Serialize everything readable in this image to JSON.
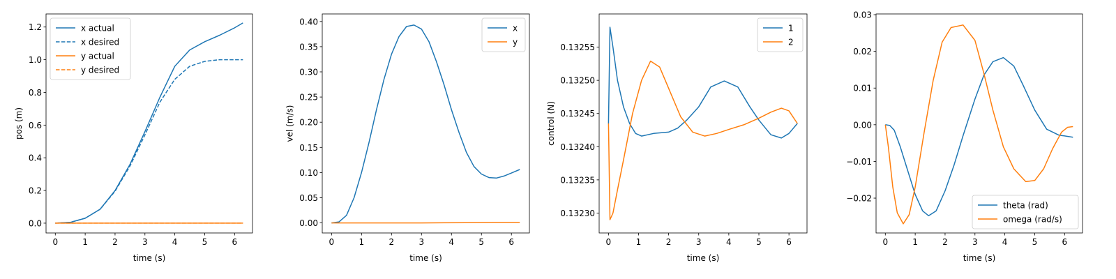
{
  "chart_data": [
    {
      "type": "line",
      "xlabel": "time (s)",
      "ylabel": "pos (m)",
      "xlim": [
        -0.31,
        6.6
      ],
      "ylim": [
        -0.06,
        1.28
      ],
      "xticks": [
        0,
        1,
        2,
        3,
        4,
        5,
        6
      ],
      "xtick_labels": [
        "0",
        "1",
        "2",
        "3",
        "4",
        "5",
        "6"
      ],
      "yticks": [
        0.0,
        0.2,
        0.4,
        0.6,
        0.8,
        1.0,
        1.2
      ],
      "ytick_labels": [
        "0.0",
        "0.2",
        "0.4",
        "0.6",
        "0.8",
        "1.0",
        "1.2"
      ],
      "legend_position": "upper-left",
      "grid": false,
      "series": [
        {
          "name": "x actual",
          "color": "#1f77b4",
          "dash": "solid",
          "x": [
            0,
            0.5,
            1,
            1.5,
            2,
            2.5,
            3,
            3.5,
            4,
            4.5,
            5,
            5.5,
            6,
            6.28
          ],
          "y": [
            0,
            0.005,
            0.03,
            0.085,
            0.2,
            0.36,
            0.56,
            0.77,
            0.96,
            1.06,
            1.11,
            1.15,
            1.195,
            1.225
          ]
        },
        {
          "name": "x desired",
          "color": "#1f77b4",
          "dash": "dashed",
          "x": [
            0,
            0.5,
            1,
            1.5,
            2,
            2.5,
            3,
            3.5,
            4,
            4.5,
            5,
            5.5,
            6,
            6.28
          ],
          "y": [
            0,
            0.005,
            0.03,
            0.085,
            0.195,
            0.35,
            0.54,
            0.74,
            0.88,
            0.96,
            0.99,
            1.0,
            1.0,
            1.0
          ]
        },
        {
          "name": "y actual",
          "color": "#ff7f0e",
          "dash": "solid",
          "x": [
            0,
            6.28
          ],
          "y": [
            0,
            0
          ]
        },
        {
          "name": "y desired",
          "color": "#ff7f0e",
          "dash": "dashed",
          "x": [
            0,
            6.28
          ],
          "y": [
            0,
            0
          ]
        }
      ]
    },
    {
      "type": "line",
      "xlabel": "time (s)",
      "ylabel": "vel (m/s)",
      "xlim": [
        -0.31,
        6.6
      ],
      "ylim": [
        -0.02,
        0.415
      ],
      "xticks": [
        0,
        1,
        2,
        3,
        4,
        5,
        6
      ],
      "xtick_labels": [
        "0",
        "1",
        "2",
        "3",
        "4",
        "5",
        "6"
      ],
      "yticks": [
        0.0,
        0.05,
        0.1,
        0.15,
        0.2,
        0.25,
        0.3,
        0.35,
        0.4
      ],
      "ytick_labels": [
        "0.00",
        "0.05",
        "0.10",
        "0.15",
        "0.20",
        "0.25",
        "0.30",
        "0.35",
        "0.40"
      ],
      "legend_position": "upper-right",
      "grid": false,
      "series": [
        {
          "name": "x",
          "color": "#1f77b4",
          "dash": "solid",
          "x": [
            0,
            0.25,
            0.5,
            0.75,
            1,
            1.25,
            1.5,
            1.75,
            2,
            2.25,
            2.5,
            2.75,
            3,
            3.25,
            3.5,
            3.75,
            4,
            4.25,
            4.5,
            4.75,
            5,
            5.25,
            5.5,
            5.75,
            6,
            6.28
          ],
          "y": [
            0,
            0.002,
            0.015,
            0.05,
            0.1,
            0.16,
            0.225,
            0.285,
            0.335,
            0.37,
            0.39,
            0.393,
            0.385,
            0.36,
            0.32,
            0.275,
            0.225,
            0.18,
            0.14,
            0.112,
            0.097,
            0.09,
            0.089,
            0.093,
            0.099,
            0.106
          ]
        },
        {
          "name": "y",
          "color": "#ff7f0e",
          "dash": "solid",
          "x": [
            0,
            3,
            4.5,
            5.5,
            6.28
          ],
          "y": [
            0,
            0,
            0.0005,
            0.001,
            0.001
          ]
        }
      ]
    },
    {
      "type": "line",
      "xlabel": "time (s)",
      "ylabel": "control (N)",
      "xlim": [
        -0.31,
        6.6
      ],
      "ylim": [
        0.13227,
        0.1326
      ],
      "xticks": [
        0,
        1,
        2,
        3,
        4,
        5,
        6
      ],
      "xtick_labels": [
        "0",
        "1",
        "2",
        "3",
        "4",
        "5",
        "6"
      ],
      "yticks": [
        0.1323,
        0.13235,
        0.1324,
        0.13245,
        0.1325,
        0.13255
      ],
      "ytick_labels": [
        "0.13230",
        "0.13235",
        "0.13240",
        "0.13245",
        "0.13250",
        "0.13255"
      ],
      "legend_position": "upper-right",
      "grid": false,
      "series": [
        {
          "name": "1",
          "color": "#1f77b4",
          "dash": "solid",
          "x": [
            0,
            0.05,
            0.15,
            0.3,
            0.5,
            0.7,
            0.9,
            1.1,
            1.5,
            2.0,
            2.3,
            2.6,
            3.0,
            3.4,
            3.85,
            4.3,
            4.7,
            5.0,
            5.4,
            5.75,
            6.0,
            6.28
          ],
          "y": [
            0.132435,
            0.13258,
            0.13255,
            0.1325,
            0.13246,
            0.132435,
            0.13242,
            0.132416,
            0.13242,
            0.132422,
            0.132428,
            0.13244,
            0.13246,
            0.13249,
            0.132499,
            0.13249,
            0.13246,
            0.13244,
            0.132418,
            0.132413,
            0.13242,
            0.132435
          ]
        },
        {
          "name": "2",
          "color": "#ff7f0e",
          "dash": "solid",
          "x": [
            0,
            0.05,
            0.15,
            0.3,
            0.5,
            0.8,
            1.1,
            1.4,
            1.7,
            2.0,
            2.4,
            2.8,
            3.2,
            3.6,
            4.0,
            4.5,
            5.0,
            5.4,
            5.75,
            6.0,
            6.28
          ],
          "y": [
            0.132435,
            0.13229,
            0.1323,
            0.132335,
            0.13238,
            0.13245,
            0.1325,
            0.132529,
            0.13252,
            0.132488,
            0.132445,
            0.132422,
            0.132416,
            0.13242,
            0.132426,
            0.132433,
            0.132443,
            0.132452,
            0.132458,
            0.132454,
            0.132435
          ]
        }
      ]
    },
    {
      "type": "line",
      "xlabel": "time (s)",
      "ylabel": "",
      "xlim": [
        -0.31,
        6.6
      ],
      "ylim": [
        -0.0295,
        0.0302
      ],
      "xticks": [
        0,
        1,
        2,
        3,
        4,
        5,
        6
      ],
      "xtick_labels": [
        "0",
        "1",
        "2",
        "3",
        "4",
        "5",
        "6"
      ],
      "yticks": [
        -0.02,
        -0.01,
        0.0,
        0.01,
        0.02,
        0.03
      ],
      "ytick_labels": [
        "−0.02",
        "−0.01",
        "0.00",
        "0.01",
        "0.02",
        "0.03"
      ],
      "legend_position": "lower-right",
      "grid": false,
      "series": [
        {
          "name": "theta (rad)",
          "color": "#1f77b4",
          "dash": "solid",
          "x": [
            0,
            0.15,
            0.3,
            0.5,
            0.75,
            1.0,
            1.25,
            1.45,
            1.7,
            2.0,
            2.3,
            2.6,
            3.0,
            3.3,
            3.6,
            3.95,
            4.3,
            4.6,
            5.0,
            5.4,
            5.8,
            6.28
          ],
          "y": [
            0,
            -0.0002,
            -0.0015,
            -0.006,
            -0.0125,
            -0.019,
            -0.0235,
            -0.0248,
            -0.0235,
            -0.018,
            -0.011,
            -0.003,
            0.007,
            0.0135,
            0.0172,
            0.0183,
            0.016,
            0.011,
            0.004,
            -0.0012,
            -0.0028,
            -0.0034
          ]
        },
        {
          "name": "omega (rad/s)",
          "color": "#ff7f0e",
          "dash": "solid",
          "x": [
            0,
            0.1,
            0.25,
            0.4,
            0.6,
            0.8,
            1.0,
            1.3,
            1.6,
            1.9,
            2.2,
            2.6,
            3.0,
            3.3,
            3.6,
            3.95,
            4.3,
            4.7,
            5.0,
            5.3,
            5.6,
            5.9,
            6.1,
            6.28
          ],
          "y": [
            0,
            -0.006,
            -0.017,
            -0.024,
            -0.027,
            -0.0245,
            -0.017,
            -0.002,
            0.012,
            0.0225,
            0.0265,
            0.0272,
            0.023,
            0.014,
            0.004,
            -0.006,
            -0.012,
            -0.0155,
            -0.0152,
            -0.012,
            -0.0065,
            -0.002,
            -0.0007,
            -0.0005
          ]
        }
      ]
    }
  ]
}
